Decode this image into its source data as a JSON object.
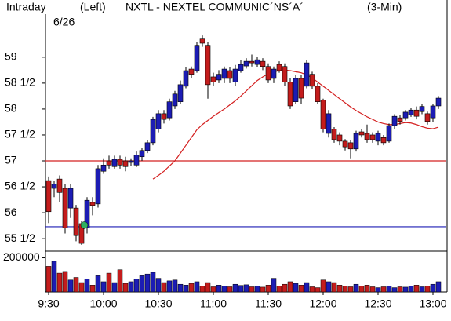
{
  "chart_data": {
    "type": "candlestick",
    "title": "NXTL - NEXTEL COMMUNIC´NS´A´",
    "period": "Intraday",
    "side": "(Left)",
    "interval": "(3-Min)",
    "date": "6/26",
    "categories": [
      "9:30",
      null,
      null,
      null,
      null,
      null,
      null,
      null,
      null,
      null,
      "10:00",
      null,
      null,
      null,
      null,
      null,
      null,
      null,
      null,
      null,
      "10:30",
      null,
      null,
      null,
      null,
      null,
      null,
      null,
      null,
      null,
      "11:00",
      null,
      null,
      null,
      null,
      null,
      null,
      null,
      null,
      null,
      "11:30",
      null,
      null,
      null,
      null,
      null,
      null,
      null,
      null,
      null,
      "12:00",
      null,
      null,
      null,
      null,
      null,
      null,
      null,
      null,
      null,
      "12:30",
      null,
      null,
      null,
      null,
      null,
      null,
      null,
      null,
      null,
      "13:00",
      null
    ],
    "open": [
      56.62,
      56.47,
      56.65,
      56.47,
      56.09,
      56.09,
      55.79,
      55.71,
      56.2,
      56.17,
      56.8,
      57.0,
      56.89,
      57.03,
      57.0,
      56.97,
      56.92,
      57.08,
      57.2,
      57.35,
      57.61,
      57.91,
      57.83,
      58.06,
      58.14,
      58.44,
      58.77,
      58.74,
      59.35,
      59.23,
      58.62,
      58.56,
      58.59,
      58.74,
      58.52,
      58.74,
      58.83,
      58.92,
      58.86,
      58.92,
      58.82,
      58.59,
      58.86,
      58.82,
      58.52,
      58.14,
      58.59,
      58.44,
      58.67,
      58.44,
      58.17,
      57.53,
      57.61,
      57.5,
      57.38,
      57.35,
      57.23,
      57.56,
      57.53,
      57.5,
      57.38,
      57.45,
      57.38,
      57.68,
      57.83,
      57.83,
      57.89,
      57.98,
      57.95,
      57.91,
      57.83,
      58.06
    ],
    "high": [
      56.7,
      56.62,
      56.72,
      56.55,
      56.55,
      56.15,
      55.85,
      56.3,
      56.3,
      56.92,
      57.05,
      57.1,
      57.1,
      57.1,
      57.08,
      57.05,
      57.18,
      57.25,
      57.4,
      57.85,
      57.98,
      57.98,
      58.2,
      58.35,
      58.55,
      58.8,
      58.82,
      59.3,
      59.42,
      59.3,
      58.7,
      58.75,
      58.82,
      58.8,
      58.85,
      58.95,
      58.98,
      59.05,
      59.0,
      58.98,
      58.88,
      58.82,
      58.92,
      58.88,
      58.6,
      58.65,
      58.65,
      58.95,
      58.72,
      58.5,
      58.2,
      57.98,
      57.65,
      57.55,
      57.42,
      57.4,
      57.58,
      57.62,
      57.7,
      57.55,
      57.58,
      57.5,
      57.72,
      57.9,
      57.88,
      57.98,
      58.02,
      58.05,
      58.1,
      57.95,
      58.1,
      58.25
    ],
    "low": [
      55.8,
      56.3,
      56.2,
      55.6,
      55.9,
      55.45,
      55.38,
      55.6,
      55.95,
      56.1,
      56.75,
      56.85,
      56.85,
      56.85,
      56.8,
      56.9,
      56.88,
      57.0,
      57.15,
      57.3,
      57.55,
      57.72,
      57.78,
      58.0,
      58.1,
      58.4,
      58.6,
      58.7,
      59.2,
      58.2,
      58.45,
      58.5,
      58.5,
      58.5,
      58.45,
      58.7,
      58.78,
      58.82,
      58.8,
      58.75,
      58.5,
      58.5,
      58.7,
      58.45,
      58.0,
      58.1,
      58.1,
      58.4,
      58.38,
      58.1,
      57.55,
      57.45,
      57.35,
      57.3,
      57.2,
      57.05,
      57.18,
      57.45,
      57.35,
      57.35,
      57.3,
      57.3,
      57.35,
      57.62,
      57.7,
      57.78,
      57.85,
      57.8,
      57.9,
      57.7,
      57.75,
      58.0
    ],
    "close": [
      56.02,
      56.55,
      56.39,
      55.71,
      56.47,
      55.56,
      55.41,
      56.24,
      56.14,
      56.85,
      56.92,
      56.92,
      57.03,
      56.92,
      56.89,
      57.0,
      57.11,
      57.2,
      57.35,
      57.8,
      57.91,
      57.8,
      58.14,
      58.29,
      58.47,
      58.74,
      58.67,
      59.23,
      59.27,
      58.47,
      58.52,
      58.67,
      58.77,
      58.59,
      58.77,
      58.86,
      58.92,
      58.89,
      58.95,
      58.82,
      58.56,
      58.77,
      58.74,
      58.52,
      58.06,
      58.59,
      58.21,
      58.89,
      58.44,
      58.14,
      57.61,
      57.91,
      57.41,
      57.38,
      57.27,
      57.23,
      57.53,
      57.5,
      57.41,
      57.41,
      57.53,
      57.35,
      57.68,
      57.86,
      57.76,
      57.94,
      57.98,
      57.86,
      58.05,
      57.76,
      58.06,
      58.21
    ],
    "up_color": "#1c1cb4",
    "down_color": "#c41c1c",
    "moving_average": {
      "color": "#d42020",
      "values": [
        null,
        null,
        null,
        null,
        null,
        null,
        null,
        null,
        null,
        null,
        null,
        null,
        null,
        null,
        null,
        null,
        null,
        null,
        null,
        56.65,
        56.72,
        56.8,
        56.9,
        57.0,
        57.15,
        57.3,
        57.45,
        57.6,
        57.7,
        57.78,
        57.86,
        57.93,
        58.0,
        58.08,
        58.16,
        58.25,
        58.35,
        58.45,
        58.55,
        58.62,
        58.68,
        58.72,
        58.74,
        58.75,
        58.74,
        58.72,
        58.7,
        58.66,
        58.6,
        58.52,
        58.44,
        58.36,
        58.28,
        58.2,
        58.12,
        58.04,
        57.97,
        57.91,
        57.85,
        57.8,
        57.75,
        57.72,
        57.7,
        57.7,
        57.72,
        57.74,
        57.73,
        57.7,
        57.66,
        57.63,
        57.62,
        57.65
      ]
    },
    "hlines": [
      {
        "value": 57,
        "color": "#d42020"
      },
      {
        "value": 55.73,
        "color": "#1c1cb4"
      }
    ],
    "signal": {
      "value": 55.76,
      "color": "#30b060"
    },
    "ylim": [
      55.29,
      59.83
    ],
    "yticks": [
      {
        "value": 55.5,
        "label": "55 1/2"
      },
      56,
      {
        "value": 56.5,
        "label": "56 1/2"
      },
      57,
      {
        "value": 57.5,
        "label": "57 1/2"
      },
      58,
      {
        "value": 58.5,
        "label": "58 1/2"
      },
      59
    ],
    "volume": [
      150000,
      180000,
      110000,
      120000,
      70000,
      85000,
      55000,
      75000,
      40000,
      95000,
      60000,
      110000,
      55000,
      130000,
      50000,
      60000,
      75000,
      95000,
      105000,
      115000,
      80000,
      55000,
      65000,
      70000,
      45000,
      40000,
      50000,
      60000,
      35000,
      55000,
      30000,
      40000,
      35000,
      30000,
      45000,
      38000,
      42000,
      30000,
      35000,
      28000,
      40000,
      80000,
      35000,
      45000,
      60000,
      50000,
      40000,
      55000,
      30000,
      25000,
      70000,
      60000,
      55000,
      40000,
      35000,
      30000,
      45000,
      35000,
      40000,
      30000,
      25000,
      30000,
      35000,
      25000,
      30000,
      28000,
      35000,
      40000,
      30000,
      35000,
      45000,
      60000
    ],
    "vlim": [
      0,
      230000
    ],
    "vticks": [
      200000
    ]
  }
}
